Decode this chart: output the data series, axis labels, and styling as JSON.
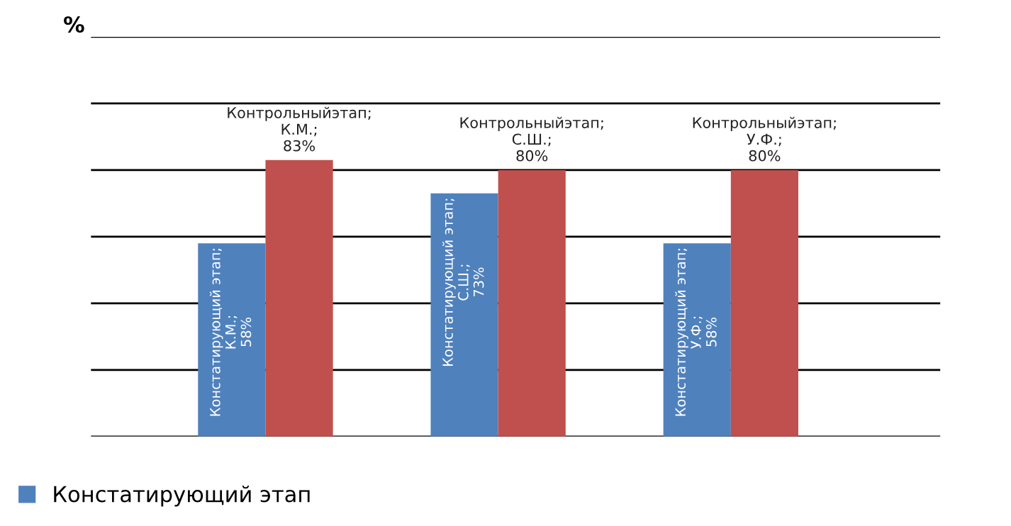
{
  "chart_data": {
    "type": "bar",
    "ylabel": "%",
    "categories": [
      null,
      null,
      null
    ],
    "series": [
      {
        "name": "Констатирующий этап",
        "color": "#4f81bd",
        "values": [
          58,
          73,
          58
        ],
        "value_labels": [
          "Констатирующий этап; К.М.; 58%",
          "Констатирующий этап; С.Ш.; 73%",
          "Констатирующий этап; У.Ф.; 58%"
        ]
      },
      {
        "color": "#c0504d",
        "values": [
          83,
          80,
          80
        ],
        "value_labels": [
          "Контрольныйэтап; К.М.; 83%",
          "Контрольныйэтап; С.Ш.; 80%",
          "Контрольныйэтап; У.Ф.; 80%"
        ]
      }
    ],
    "ylim": [
      0,
      120
    ],
    "yticks": [
      {
        "value": 0,
        "label": null
      },
      {
        "value": 20,
        "label": null
      },
      {
        "value": 40,
        "label": null
      },
      {
        "value": 60,
        "label": null
      },
      {
        "value": 80,
        "label": null
      },
      {
        "value": 100,
        "label": null
      },
      {
        "value": 120,
        "label": null
      }
    ],
    "grid": "y",
    "legend": "bottom left"
  }
}
